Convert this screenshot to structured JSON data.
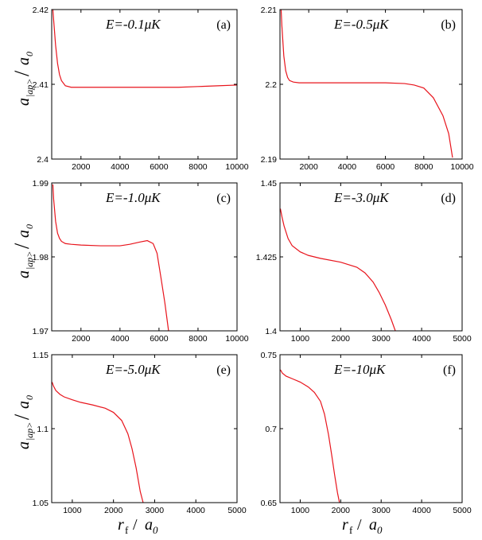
{
  "figure": {
    "ylabel_main": "a",
    "ylabel_sub": "|ap>",
    "ylabel_slash": "/",
    "ylabel_den": "a",
    "ylabel_den_sub": "0",
    "xlabel_main": "r",
    "xlabel_sub": "f",
    "xlabel_slash": " / ",
    "xlabel_den": "a",
    "xlabel_den_sub": "0"
  },
  "chart_data": [
    {
      "type": "line",
      "panel": "(a)",
      "annotation": "E=-0.1μK",
      "xlim": [
        500,
        10000
      ],
      "ylim": [
        2.4,
        2.42
      ],
      "xticks": [
        2000,
        4000,
        6000,
        8000,
        10000
      ],
      "xtick_labels": [
        "2000",
        "4000",
        "6000",
        "8000",
        "10000"
      ],
      "yticks": [
        2.4,
        2.41,
        2.42
      ],
      "ytick_labels": [
        "2.4",
        "2.41",
        "2.42"
      ],
      "series": [
        {
          "color": "#e8141c",
          "x": [
            560,
            600,
            700,
            800,
            900,
            1000,
            1200,
            1500,
            2000,
            3000,
            4000,
            5000,
            6000,
            7000,
            8000,
            9000,
            10000
          ],
          "y": [
            2.42,
            2.4186,
            2.4152,
            2.4128,
            2.4113,
            2.4105,
            2.4098,
            2.4096,
            2.4096,
            2.4096,
            2.4096,
            2.4096,
            2.4096,
            2.4096,
            2.4097,
            2.4098,
            2.4099
          ]
        }
      ]
    },
    {
      "type": "line",
      "panel": "(b)",
      "annotation": "E=-0.5μK",
      "xlim": [
        500,
        10000
      ],
      "ylim": [
        2.19,
        2.21
      ],
      "xticks": [
        2000,
        4000,
        6000,
        8000,
        10000
      ],
      "xtick_labels": [
        "2000",
        "4000",
        "6000",
        "8000",
        "10000"
      ],
      "yticks": [
        2.19,
        2.2,
        2.21
      ],
      "ytick_labels": [
        "2.19",
        "2.2",
        "2.21"
      ],
      "series": [
        {
          "color": "#e8141c",
          "x": [
            560,
            600,
            700,
            800,
            900,
            1000,
            1200,
            1500,
            2000,
            3000,
            4000,
            5000,
            6000,
            7000,
            7500,
            8000,
            8500,
            9000,
            9300,
            9500
          ],
          "y": [
            2.21,
            2.2078,
            2.2038,
            2.2018,
            2.2009,
            2.2005,
            2.2003,
            2.2002,
            2.2002,
            2.2002,
            2.2002,
            2.2002,
            2.2002,
            2.2001,
            2.1999,
            2.1995,
            2.1982,
            2.1958,
            2.1934,
            2.1902
          ]
        }
      ]
    },
    {
      "type": "line",
      "panel": "(c)",
      "annotation": "E=-1.0μK",
      "xlim": [
        500,
        10000
      ],
      "ylim": [
        1.97,
        1.99
      ],
      "xticks": [
        2000,
        4000,
        6000,
        8000,
        10000
      ],
      "xtick_labels": [
        "2000",
        "4000",
        "6000",
        "8000",
        "10000"
      ],
      "yticks": [
        1.97,
        1.98,
        1.99
      ],
      "ytick_labels": [
        "1.97",
        "1.98",
        "1.99"
      ],
      "series": [
        {
          "color": "#e8141c",
          "x": [
            560,
            600,
            700,
            800,
            900,
            1000,
            1200,
            1500,
            2000,
            3000,
            4000,
            4500,
            5000,
            5400,
            5700,
            5900,
            6100,
            6300,
            6400,
            6500
          ],
          "y": [
            1.9898,
            1.9878,
            1.9848,
            1.9832,
            1.9825,
            1.9821,
            1.9818,
            1.9817,
            1.9816,
            1.9815,
            1.9815,
            1.9817,
            1.982,
            1.9822,
            1.9818,
            1.9805,
            1.9772,
            1.9738,
            1.9718,
            1.9698
          ]
        }
      ]
    },
    {
      "type": "line",
      "panel": "(d)",
      "annotation": "E=-3.0μK",
      "xlim": [
        500,
        5000
      ],
      "ylim": [
        1.4,
        1.45
      ],
      "xticks": [
        1000,
        2000,
        3000,
        4000,
        5000
      ],
      "xtick_labels": [
        "1000",
        "2000",
        "3000",
        "4000",
        "5000"
      ],
      "yticks": [
        1.4,
        1.425,
        1.45
      ],
      "ytick_labels": [
        "1.4",
        "1.425",
        "1.45"
      ],
      "series": [
        {
          "color": "#e8141c",
          "x": [
            510,
            550,
            600,
            700,
            800,
            1000,
            1200,
            1500,
            2000,
            2400,
            2600,
            2800,
            2950,
            3100,
            3250,
            3350
          ],
          "y": [
            1.4413,
            1.4385,
            1.4355,
            1.4312,
            1.4288,
            1.4267,
            1.4255,
            1.4245,
            1.4232,
            1.4215,
            1.4196,
            1.4165,
            1.413,
            1.4088,
            1.4038,
            1.4
          ]
        }
      ]
    },
    {
      "type": "line",
      "panel": "(e)",
      "annotation": "E=-5.0μK",
      "xlim": [
        500,
        5000
      ],
      "ylim": [
        1.05,
        1.15
      ],
      "xticks": [
        1000,
        2000,
        3000,
        4000,
        5000
      ],
      "xtick_labels": [
        "1000",
        "2000",
        "3000",
        "4000",
        "5000"
      ],
      "yticks": [
        1.05,
        1.1,
        1.15
      ],
      "ytick_labels": [
        "1.05",
        "1.1",
        "1.15"
      ],
      "series": [
        {
          "color": "#e8141c",
          "x": [
            510,
            540,
            600,
            700,
            800,
            1000,
            1200,
            1500,
            1800,
            2000,
            2200,
            2350,
            2450,
            2550,
            2650,
            2720
          ],
          "y": [
            1.1315,
            1.129,
            1.1258,
            1.1232,
            1.1215,
            1.1195,
            1.1178,
            1.116,
            1.1138,
            1.111,
            1.1055,
            1.0965,
            1.0865,
            1.0735,
            1.0575,
            1.05
          ]
        }
      ]
    },
    {
      "type": "line",
      "panel": "(f)",
      "annotation": "E=-10μK",
      "xlim": [
        500,
        5000
      ],
      "ylim": [
        0.65,
        0.75
      ],
      "xticks": [
        1000,
        2000,
        3000,
        4000,
        5000
      ],
      "xtick_labels": [
        "1000",
        "2000",
        "3000",
        "4000",
        "5000"
      ],
      "yticks": [
        0.65,
        0.7,
        0.75
      ],
      "ytick_labels": [
        "0.65",
        "0.7",
        "0.75"
      ],
      "series": [
        {
          "color": "#e8141c",
          "x": [
            510,
            560,
            650,
            800,
            1000,
            1200,
            1350,
            1500,
            1600,
            1700,
            1780,
            1850,
            1920,
            1970
          ],
          "y": [
            0.7398,
            0.7375,
            0.7355,
            0.7338,
            0.7315,
            0.7282,
            0.7245,
            0.7185,
            0.7098,
            0.6958,
            0.6818,
            0.6688,
            0.6568,
            0.65
          ]
        }
      ]
    }
  ]
}
